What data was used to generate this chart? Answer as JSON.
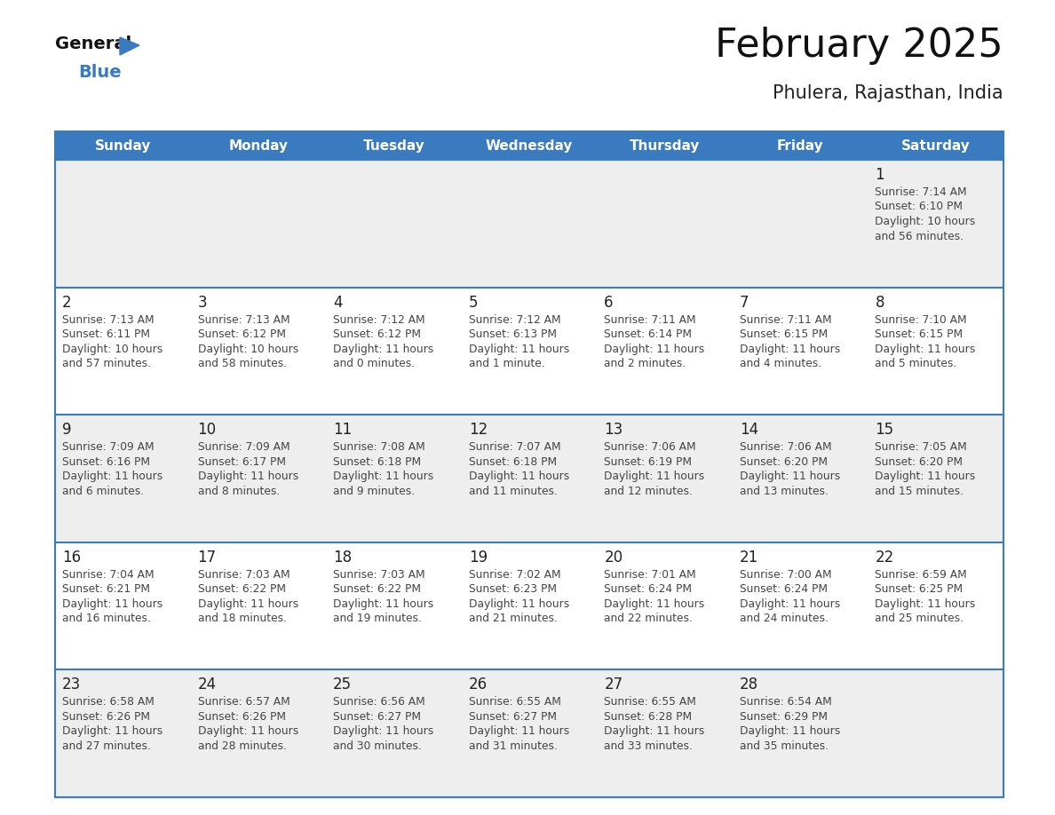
{
  "title": "February 2025",
  "subtitle": "Phulera, Rajasthan, India",
  "header_bg": "#3a7abf",
  "header_text_color": "#ffffff",
  "day_names": [
    "Sunday",
    "Monday",
    "Tuesday",
    "Wednesday",
    "Thursday",
    "Friday",
    "Saturday"
  ],
  "row_bg_odd": "#eeeeee",
  "row_bg_even": "#ffffff",
  "border_color": "#3a7abf",
  "text_color": "#444444",
  "day_num_color": "#222222",
  "calendar": [
    [
      null,
      null,
      null,
      null,
      null,
      null,
      {
        "day": 1,
        "sunrise": "7:14 AM",
        "sunset": "6:10 PM",
        "daylight_line1": "Daylight: 10 hours",
        "daylight_line2": "and 56 minutes."
      }
    ],
    [
      {
        "day": 2,
        "sunrise": "7:13 AM",
        "sunset": "6:11 PM",
        "daylight_line1": "Daylight: 10 hours",
        "daylight_line2": "and 57 minutes."
      },
      {
        "day": 3,
        "sunrise": "7:13 AM",
        "sunset": "6:12 PM",
        "daylight_line1": "Daylight: 10 hours",
        "daylight_line2": "and 58 minutes."
      },
      {
        "day": 4,
        "sunrise": "7:12 AM",
        "sunset": "6:12 PM",
        "daylight_line1": "Daylight: 11 hours",
        "daylight_line2": "and 0 minutes."
      },
      {
        "day": 5,
        "sunrise": "7:12 AM",
        "sunset": "6:13 PM",
        "daylight_line1": "Daylight: 11 hours",
        "daylight_line2": "and 1 minute."
      },
      {
        "day": 6,
        "sunrise": "7:11 AM",
        "sunset": "6:14 PM",
        "daylight_line1": "Daylight: 11 hours",
        "daylight_line2": "and 2 minutes."
      },
      {
        "day": 7,
        "sunrise": "7:11 AM",
        "sunset": "6:15 PM",
        "daylight_line1": "Daylight: 11 hours",
        "daylight_line2": "and 4 minutes."
      },
      {
        "day": 8,
        "sunrise": "7:10 AM",
        "sunset": "6:15 PM",
        "daylight_line1": "Daylight: 11 hours",
        "daylight_line2": "and 5 minutes."
      }
    ],
    [
      {
        "day": 9,
        "sunrise": "7:09 AM",
        "sunset": "6:16 PM",
        "daylight_line1": "Daylight: 11 hours",
        "daylight_line2": "and 6 minutes."
      },
      {
        "day": 10,
        "sunrise": "7:09 AM",
        "sunset": "6:17 PM",
        "daylight_line1": "Daylight: 11 hours",
        "daylight_line2": "and 8 minutes."
      },
      {
        "day": 11,
        "sunrise": "7:08 AM",
        "sunset": "6:18 PM",
        "daylight_line1": "Daylight: 11 hours",
        "daylight_line2": "and 9 minutes."
      },
      {
        "day": 12,
        "sunrise": "7:07 AM",
        "sunset": "6:18 PM",
        "daylight_line1": "Daylight: 11 hours",
        "daylight_line2": "and 11 minutes."
      },
      {
        "day": 13,
        "sunrise": "7:06 AM",
        "sunset": "6:19 PM",
        "daylight_line1": "Daylight: 11 hours",
        "daylight_line2": "and 12 minutes."
      },
      {
        "day": 14,
        "sunrise": "7:06 AM",
        "sunset": "6:20 PM",
        "daylight_line1": "Daylight: 11 hours",
        "daylight_line2": "and 13 minutes."
      },
      {
        "day": 15,
        "sunrise": "7:05 AM",
        "sunset": "6:20 PM",
        "daylight_line1": "Daylight: 11 hours",
        "daylight_line2": "and 15 minutes."
      }
    ],
    [
      {
        "day": 16,
        "sunrise": "7:04 AM",
        "sunset": "6:21 PM",
        "daylight_line1": "Daylight: 11 hours",
        "daylight_line2": "and 16 minutes."
      },
      {
        "day": 17,
        "sunrise": "7:03 AM",
        "sunset": "6:22 PM",
        "daylight_line1": "Daylight: 11 hours",
        "daylight_line2": "and 18 minutes."
      },
      {
        "day": 18,
        "sunrise": "7:03 AM",
        "sunset": "6:22 PM",
        "daylight_line1": "Daylight: 11 hours",
        "daylight_line2": "and 19 minutes."
      },
      {
        "day": 19,
        "sunrise": "7:02 AM",
        "sunset": "6:23 PM",
        "daylight_line1": "Daylight: 11 hours",
        "daylight_line2": "and 21 minutes."
      },
      {
        "day": 20,
        "sunrise": "7:01 AM",
        "sunset": "6:24 PM",
        "daylight_line1": "Daylight: 11 hours",
        "daylight_line2": "and 22 minutes."
      },
      {
        "day": 21,
        "sunrise": "7:00 AM",
        "sunset": "6:24 PM",
        "daylight_line1": "Daylight: 11 hours",
        "daylight_line2": "and 24 minutes."
      },
      {
        "day": 22,
        "sunrise": "6:59 AM",
        "sunset": "6:25 PM",
        "daylight_line1": "Daylight: 11 hours",
        "daylight_line2": "and 25 minutes."
      }
    ],
    [
      {
        "day": 23,
        "sunrise": "6:58 AM",
        "sunset": "6:26 PM",
        "daylight_line1": "Daylight: 11 hours",
        "daylight_line2": "and 27 minutes."
      },
      {
        "day": 24,
        "sunrise": "6:57 AM",
        "sunset": "6:26 PM",
        "daylight_line1": "Daylight: 11 hours",
        "daylight_line2": "and 28 minutes."
      },
      {
        "day": 25,
        "sunrise": "6:56 AM",
        "sunset": "6:27 PM",
        "daylight_line1": "Daylight: 11 hours",
        "daylight_line2": "and 30 minutes."
      },
      {
        "day": 26,
        "sunrise": "6:55 AM",
        "sunset": "6:27 PM",
        "daylight_line1": "Daylight: 11 hours",
        "daylight_line2": "and 31 minutes."
      },
      {
        "day": 27,
        "sunrise": "6:55 AM",
        "sunset": "6:28 PM",
        "daylight_line1": "Daylight: 11 hours",
        "daylight_line2": "and 33 minutes."
      },
      {
        "day": 28,
        "sunrise": "6:54 AM",
        "sunset": "6:29 PM",
        "daylight_line1": "Daylight: 11 hours",
        "daylight_line2": "and 35 minutes."
      },
      null
    ]
  ]
}
